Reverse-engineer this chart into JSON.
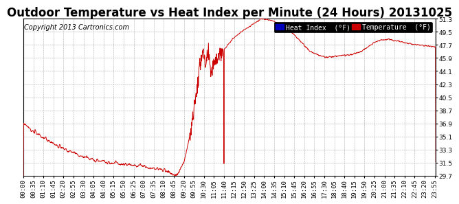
{
  "title": "Outdoor Temperature vs Heat Index per Minute (24 Hours) 20131025",
  "copyright": "Copyright 2013 Cartronics.com",
  "ylim": [
    29.7,
    51.3
  ],
  "yticks": [
    29.7,
    31.5,
    33.3,
    35.1,
    36.9,
    38.7,
    40.5,
    42.3,
    44.1,
    45.9,
    47.7,
    49.5,
    51.3
  ],
  "legend_heat_index": "Heat Index  (°F)",
  "legend_temperature": "Temperature  (°F)",
  "line_color": "#cc0000",
  "background_color": "#ffffff",
  "grid_color": "#999999",
  "title_fontsize": 12,
  "copyright_fontsize": 7,
  "tick_fontsize": 6.5,
  "legend_fontsize": 7,
  "xtick_interval": 35
}
